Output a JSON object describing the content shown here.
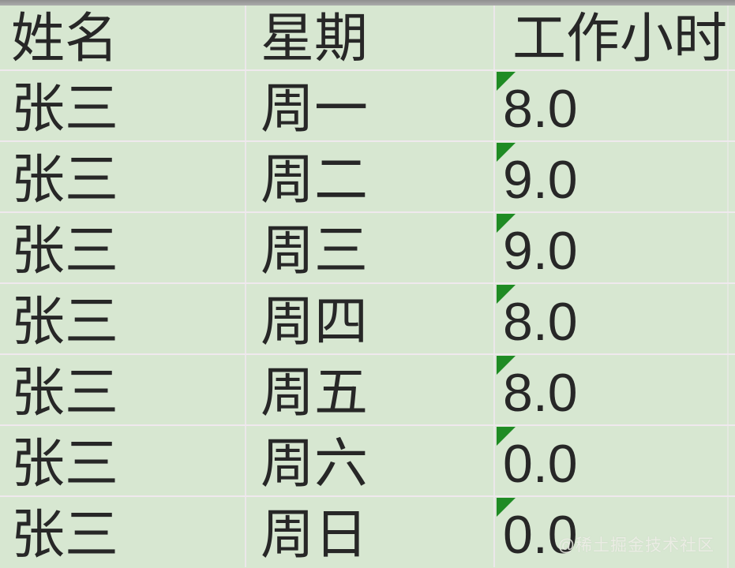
{
  "table": {
    "columns": [
      {
        "key": "name",
        "label": "姓名"
      },
      {
        "key": "day",
        "label": "星期"
      },
      {
        "key": "hours",
        "label": "工作小时"
      }
    ],
    "rows": [
      {
        "name": "张三",
        "day": "周一",
        "hours": "8.0"
      },
      {
        "name": "张三",
        "day": "周二",
        "hours": "9.0"
      },
      {
        "name": "张三",
        "day": "周三",
        "hours": "9.0"
      },
      {
        "name": "张三",
        "day": "周四",
        "hours": "8.0"
      },
      {
        "name": "张三",
        "day": "周五",
        "hours": "8.0"
      },
      {
        "name": "张三",
        "day": "周六",
        "hours": "0.0"
      },
      {
        "name": "张三",
        "day": "周日",
        "hours": "0.0"
      }
    ]
  },
  "watermark": "@稀土掘金技术社区",
  "icons": {
    "error_indicator": "green-triangle-top-left"
  },
  "colors": {
    "cell_background": "#d7e7d1",
    "gridline": "#efe9ed",
    "text": "#272727",
    "error_indicator_green": "#1f8b24",
    "top_strip_gray": "#a0a0a0",
    "watermark_text": "#f1f1ea"
  }
}
